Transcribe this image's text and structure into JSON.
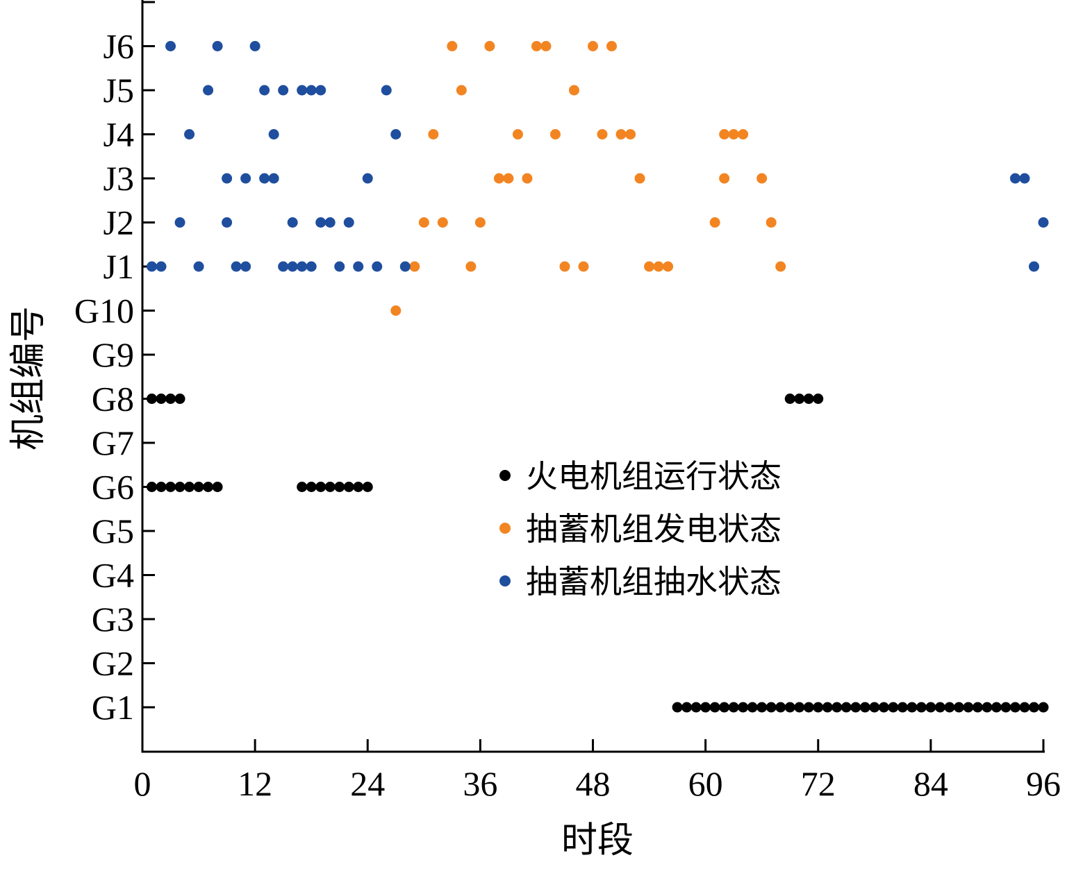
{
  "chart_data": {
    "type": "scatter",
    "title": "",
    "xlabel": "时段",
    "ylabel": "机组编号",
    "xlim": [
      0,
      96
    ],
    "x_ticks": [
      0,
      12,
      24,
      36,
      48,
      60,
      72,
      84,
      96
    ],
    "y_categories": [
      "G1",
      "G2",
      "G3",
      "G4",
      "G5",
      "G6",
      "G7",
      "G8",
      "G9",
      "G10",
      "J1",
      "J2",
      "J3",
      "J4",
      "J5",
      "J6"
    ],
    "grid": false,
    "legend_position": "center-right",
    "series": [
      {
        "name": "火电机组运行状态",
        "color": "#000000",
        "points": [
          [
            1,
            "G8"
          ],
          [
            2,
            "G8"
          ],
          [
            3,
            "G8"
          ],
          [
            4,
            "G8"
          ],
          [
            69,
            "G8"
          ],
          [
            70,
            "G8"
          ],
          [
            71,
            "G8"
          ],
          [
            72,
            "G8"
          ],
          [
            1,
            "G6"
          ],
          [
            2,
            "G6"
          ],
          [
            3,
            "G6"
          ],
          [
            4,
            "G6"
          ],
          [
            5,
            "G6"
          ],
          [
            6,
            "G6"
          ],
          [
            7,
            "G6"
          ],
          [
            8,
            "G6"
          ],
          [
            17,
            "G6"
          ],
          [
            18,
            "G6"
          ],
          [
            19,
            "G6"
          ],
          [
            20,
            "G6"
          ],
          [
            21,
            "G6"
          ],
          [
            22,
            "G6"
          ],
          [
            23,
            "G6"
          ],
          [
            24,
            "G6"
          ],
          [
            57,
            "G1"
          ],
          [
            58,
            "G1"
          ],
          [
            59,
            "G1"
          ],
          [
            60,
            "G1"
          ],
          [
            61,
            "G1"
          ],
          [
            62,
            "G1"
          ],
          [
            63,
            "G1"
          ],
          [
            64,
            "G1"
          ],
          [
            65,
            "G1"
          ],
          [
            66,
            "G1"
          ],
          [
            67,
            "G1"
          ],
          [
            68,
            "G1"
          ],
          [
            69,
            "G1"
          ],
          [
            70,
            "G1"
          ],
          [
            71,
            "G1"
          ],
          [
            72,
            "G1"
          ],
          [
            73,
            "G1"
          ],
          [
            74,
            "G1"
          ],
          [
            75,
            "G1"
          ],
          [
            76,
            "G1"
          ],
          [
            77,
            "G1"
          ],
          [
            78,
            "G1"
          ],
          [
            79,
            "G1"
          ],
          [
            80,
            "G1"
          ],
          [
            81,
            "G1"
          ],
          [
            82,
            "G1"
          ],
          [
            83,
            "G1"
          ],
          [
            84,
            "G1"
          ],
          [
            85,
            "G1"
          ],
          [
            86,
            "G1"
          ],
          [
            87,
            "G1"
          ],
          [
            88,
            "G1"
          ],
          [
            89,
            "G1"
          ],
          [
            90,
            "G1"
          ],
          [
            91,
            "G1"
          ],
          [
            92,
            "G1"
          ],
          [
            93,
            "G1"
          ],
          [
            94,
            "G1"
          ],
          [
            95,
            "G1"
          ],
          [
            96,
            "G1"
          ]
        ]
      },
      {
        "name": "抽蓄机组发电状态",
        "color": "#F28522",
        "points": [
          [
            27,
            "G10"
          ],
          [
            29,
            "J1"
          ],
          [
            35,
            "J1"
          ],
          [
            45,
            "J1"
          ],
          [
            47,
            "J1"
          ],
          [
            54,
            "J1"
          ],
          [
            55,
            "J1"
          ],
          [
            56,
            "J1"
          ],
          [
            68,
            "J1"
          ],
          [
            30,
            "J2"
          ],
          [
            32,
            "J2"
          ],
          [
            36,
            "J2"
          ],
          [
            61,
            "J2"
          ],
          [
            67,
            "J2"
          ],
          [
            38,
            "J3"
          ],
          [
            39,
            "J3"
          ],
          [
            41,
            "J3"
          ],
          [
            53,
            "J3"
          ],
          [
            62,
            "J3"
          ],
          [
            66,
            "J3"
          ],
          [
            31,
            "J4"
          ],
          [
            40,
            "J4"
          ],
          [
            44,
            "J4"
          ],
          [
            49,
            "J4"
          ],
          [
            51,
            "J4"
          ],
          [
            52,
            "J4"
          ],
          [
            62,
            "J4"
          ],
          [
            63,
            "J4"
          ],
          [
            64,
            "J4"
          ],
          [
            34,
            "J5"
          ],
          [
            46,
            "J5"
          ],
          [
            33,
            "J6"
          ],
          [
            37,
            "J6"
          ],
          [
            42,
            "J6"
          ],
          [
            43,
            "J6"
          ],
          [
            48,
            "J6"
          ],
          [
            50,
            "J6"
          ]
        ]
      },
      {
        "name": "抽蓄机组抽水状态",
        "color": "#1F4E9E",
        "points": [
          [
            1,
            "J1"
          ],
          [
            2,
            "J1"
          ],
          [
            6,
            "J1"
          ],
          [
            10,
            "J1"
          ],
          [
            11,
            "J1"
          ],
          [
            15,
            "J1"
          ],
          [
            16,
            "J1"
          ],
          [
            17,
            "J1"
          ],
          [
            18,
            "J1"
          ],
          [
            21,
            "J1"
          ],
          [
            23,
            "J1"
          ],
          [
            25,
            "J1"
          ],
          [
            28,
            "J1"
          ],
          [
            95,
            "J1"
          ],
          [
            4,
            "J2"
          ],
          [
            9,
            "J2"
          ],
          [
            16,
            "J2"
          ],
          [
            19,
            "J2"
          ],
          [
            20,
            "J2"
          ],
          [
            22,
            "J2"
          ],
          [
            96,
            "J2"
          ],
          [
            9,
            "J3"
          ],
          [
            11,
            "J3"
          ],
          [
            13,
            "J3"
          ],
          [
            14,
            "J3"
          ],
          [
            24,
            "J3"
          ],
          [
            93,
            "J3"
          ],
          [
            94,
            "J3"
          ],
          [
            5,
            "J4"
          ],
          [
            14,
            "J4"
          ],
          [
            27,
            "J4"
          ],
          [
            7,
            "J5"
          ],
          [
            13,
            "J5"
          ],
          [
            15,
            "J5"
          ],
          [
            17,
            "J5"
          ],
          [
            18,
            "J5"
          ],
          [
            19,
            "J5"
          ],
          [
            26,
            "J5"
          ],
          [
            3,
            "J6"
          ],
          [
            8,
            "J6"
          ],
          [
            12,
            "J6"
          ]
        ]
      }
    ]
  }
}
